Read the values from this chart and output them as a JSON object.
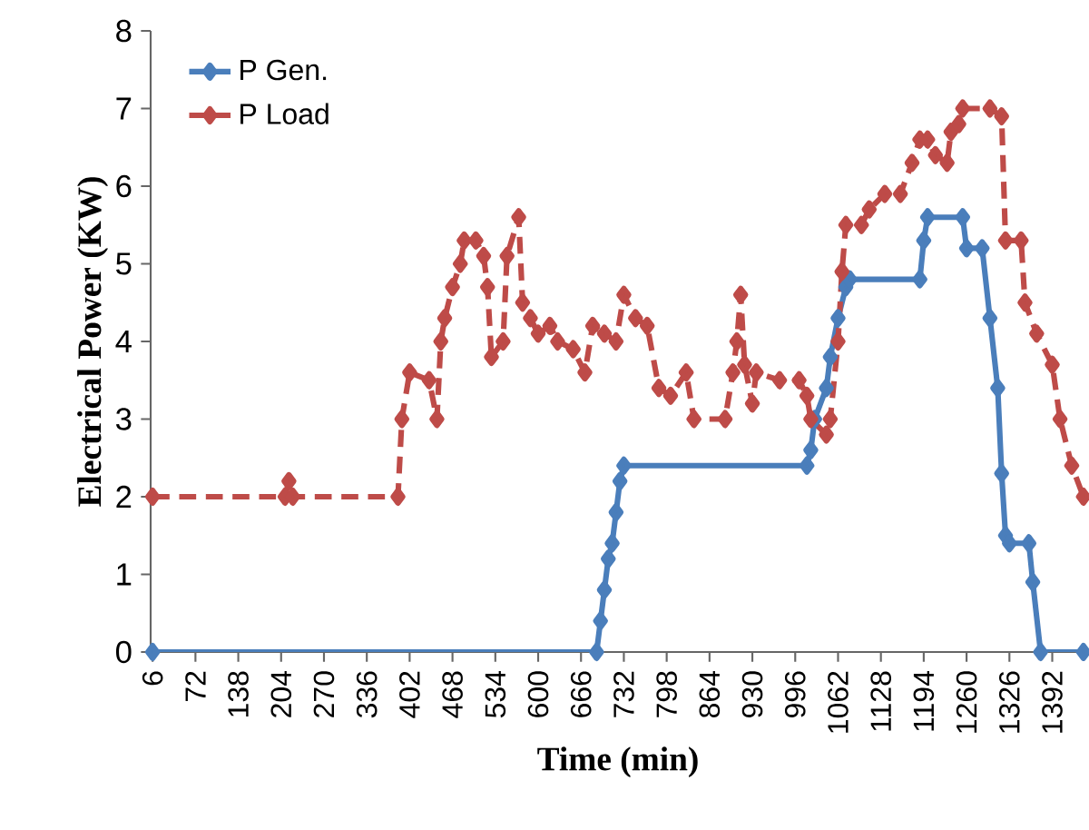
{
  "chart_data": {
    "type": "line",
    "xlabel": "Time (min)",
    "ylabel": "Electrical Power (KW)",
    "xlim": [
      3,
      1443
    ],
    "ylim": [
      0,
      8
    ],
    "xticks": [
      6,
      72,
      138,
      204,
      270,
      336,
      402,
      468,
      534,
      600,
      666,
      732,
      798,
      864,
      930,
      996,
      1062,
      1128,
      1194,
      1260,
      1326,
      1392
    ],
    "yticks": [
      0,
      1,
      2,
      3,
      4,
      5,
      6,
      7,
      8
    ],
    "legend": "top left",
    "marker": "diamond",
    "grid": false,
    "series": [
      {
        "name": "P Gen.",
        "color": "#4a7ebb",
        "line_style": "solid",
        "x": [
          6,
          690,
          696,
          702,
          708,
          714,
          720,
          726,
          732,
          1014,
          1020,
          1026,
          1044,
          1050,
          1062,
          1074,
          1080,
          1188,
          1194,
          1200,
          1254,
          1260,
          1284,
          1296,
          1308,
          1314,
          1320,
          1326,
          1356,
          1362,
          1374,
          1440
        ],
        "values": [
          0,
          0,
          0.4,
          0.8,
          1.2,
          1.4,
          1.8,
          2.2,
          2.4,
          2.4,
          2.6,
          3.0,
          3.4,
          3.8,
          4.3,
          4.7,
          4.8,
          4.8,
          5.3,
          5.6,
          5.6,
          5.2,
          5.2,
          4.3,
          3.4,
          2.3,
          1.5,
          1.4,
          1.4,
          0.9,
          0,
          0
        ]
      },
      {
        "name": "P Load",
        "color": "#be4b48",
        "line_style": "dashed",
        "x": [
          6,
          210,
          216,
          222,
          384,
          390,
          402,
          432,
          444,
          450,
          456,
          468,
          480,
          486,
          504,
          516,
          522,
          528,
          546,
          552,
          570,
          576,
          588,
          600,
          618,
          630,
          654,
          672,
          684,
          702,
          720,
          732,
          750,
          768,
          786,
          804,
          828,
          840,
          888,
          900,
          906,
          912,
          918,
          930,
          936,
          972,
          1002,
          1014,
          1020,
          1044,
          1050,
          1062,
          1068,
          1074,
          1098,
          1110,
          1134,
          1158,
          1176,
          1188,
          1200,
          1212,
          1230,
          1236,
          1248,
          1254,
          1296,
          1314,
          1320,
          1344,
          1350,
          1368,
          1392,
          1404,
          1422,
          1440
        ],
        "values": [
          2.0,
          2.0,
          2.2,
          2.0,
          2.0,
          3.0,
          3.6,
          3.5,
          3.0,
          4.0,
          4.3,
          4.7,
          5.0,
          5.3,
          5.3,
          5.1,
          4.7,
          3.8,
          4.0,
          5.1,
          5.6,
          4.5,
          4.3,
          4.1,
          4.2,
          4.0,
          3.9,
          3.6,
          4.2,
          4.1,
          4.0,
          4.6,
          4.3,
          4.2,
          3.4,
          3.3,
          3.6,
          3.0,
          3.0,
          3.6,
          4.0,
          4.6,
          3.7,
          3.2,
          3.6,
          3.5,
          3.5,
          3.3,
          3.0,
          2.8,
          3.0,
          4.0,
          4.9,
          5.5,
          5.5,
          5.7,
          5.9,
          5.9,
          6.3,
          6.6,
          6.6,
          6.4,
          6.3,
          6.7,
          6.8,
          7.0,
          7.0,
          6.9,
          5.3,
          5.3,
          4.5,
          4.1,
          3.7,
          3.0,
          2.4,
          2.0
        ]
      }
    ]
  }
}
